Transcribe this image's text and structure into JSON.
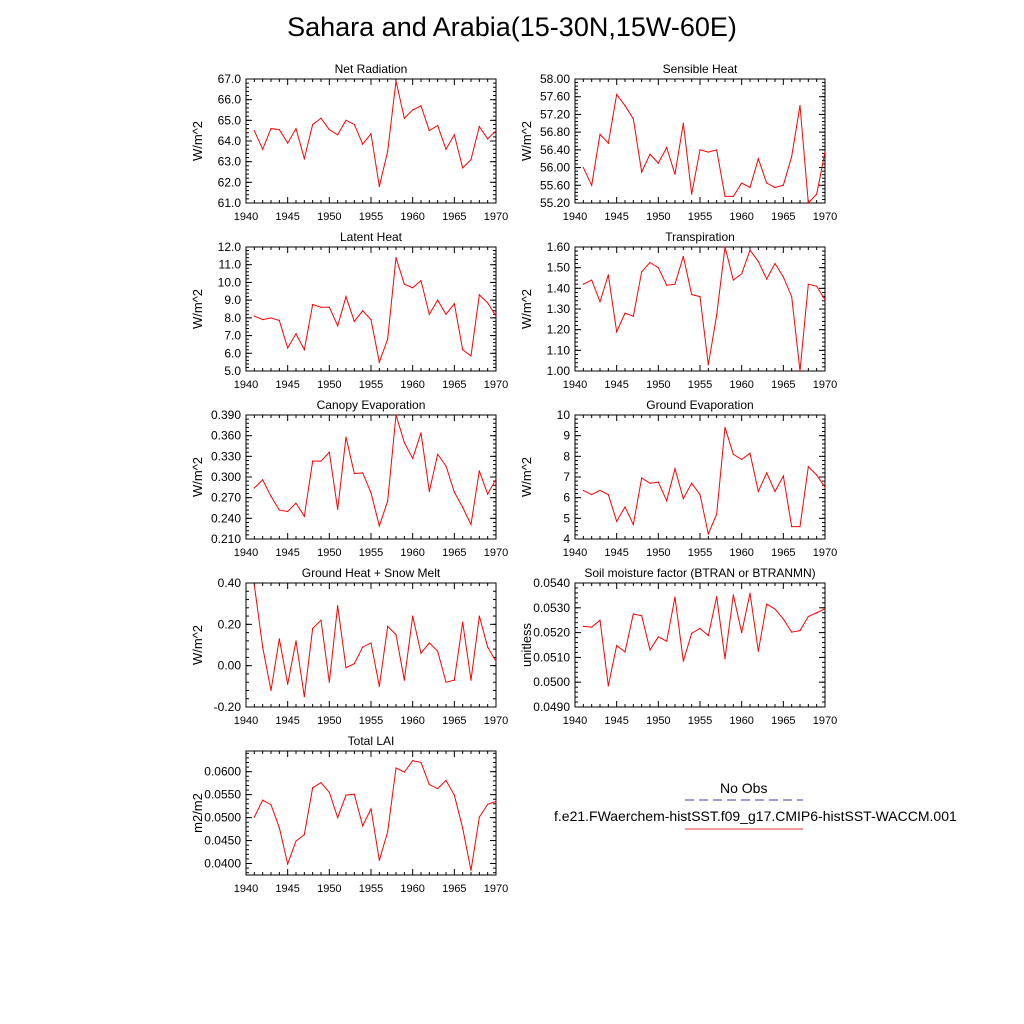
{
  "title": "Sahara and Arabia(15-30N,15W-60E)",
  "legend": {
    "obs_label": "No Obs",
    "obs_color": "#3f3f9f",
    "model_label": "f.e21.FWaerchem-histSST.f09_g17.CMIP6-histSST-WACCM.001",
    "model_color": "#e63a3a"
  },
  "line_color": "#ff0000",
  "chart_data": [
    {
      "type": "line",
      "title": "Net Radiation",
      "ylabel": "W/m^2",
      "xlim": [
        1940,
        1970
      ],
      "ylim": [
        61.0,
        67.0
      ],
      "xticks": [
        "1940",
        "1945",
        "1950",
        "1955",
        "1960",
        "1965",
        "1970"
      ],
      "yticks": [
        "61.0",
        "62.0",
        "63.0",
        "64.0",
        "65.0",
        "66.0",
        "67.0"
      ],
      "x": [
        1941,
        1942,
        1943,
        1944,
        1945,
        1946,
        1947,
        1948,
        1949,
        1950,
        1951,
        1952,
        1953,
        1954,
        1955,
        1956,
        1957,
        1958,
        1959,
        1960,
        1961,
        1962,
        1963,
        1964,
        1965,
        1966,
        1967,
        1968,
        1969,
        1970
      ],
      "y": [
        64.5,
        63.6,
        64.6,
        64.55,
        63.9,
        64.6,
        63.15,
        64.8,
        65.1,
        64.55,
        64.3,
        65.0,
        64.8,
        63.85,
        64.35,
        61.8,
        63.5,
        66.9,
        65.1,
        65.5,
        65.7,
        64.5,
        64.75,
        63.6,
        64.3,
        62.7,
        63.1,
        64.7,
        64.1,
        64.5
      ]
    },
    {
      "type": "line",
      "title": "Sensible Heat",
      "ylabel": "W/m^2",
      "xlim": [
        1940,
        1970
      ],
      "ylim": [
        55.2,
        58.0
      ],
      "xticks": [
        "1940",
        "1945",
        "1950",
        "1955",
        "1960",
        "1965",
        "1970"
      ],
      "yticks": [
        "55.20",
        "55.60",
        "56.00",
        "56.40",
        "56.80",
        "57.20",
        "57.60",
        "58.00"
      ],
      "x": [
        1941,
        1942,
        1943,
        1944,
        1945,
        1946,
        1947,
        1948,
        1949,
        1950,
        1951,
        1952,
        1953,
        1954,
        1955,
        1956,
        1957,
        1958,
        1959,
        1960,
        1961,
        1962,
        1963,
        1964,
        1965,
        1966,
        1967,
        1968,
        1969,
        1970
      ],
      "y": [
        56.0,
        55.6,
        56.75,
        56.55,
        57.65,
        57.4,
        57.1,
        55.9,
        56.3,
        56.1,
        56.45,
        55.85,
        57.0,
        55.4,
        56.4,
        56.35,
        56.4,
        55.35,
        55.35,
        55.65,
        55.55,
        56.2,
        55.65,
        55.55,
        55.6,
        56.25,
        57.4,
        55.2,
        55.4,
        56.35
      ]
    },
    {
      "type": "line",
      "title": "Latent Heat",
      "ylabel": "W/m^2",
      "xlim": [
        1940,
        1970
      ],
      "ylim": [
        5.0,
        12.0
      ],
      "xticks": [
        "1940",
        "1945",
        "1950",
        "1955",
        "1960",
        "1965",
        "1970"
      ],
      "yticks": [
        "5.0",
        "6.0",
        "7.0",
        "8.0",
        "9.0",
        "10.0",
        "11.0",
        "12.0"
      ],
      "x": [
        1941,
        1942,
        1943,
        1944,
        1945,
        1946,
        1947,
        1948,
        1949,
        1950,
        1951,
        1952,
        1953,
        1954,
        1955,
        1956,
        1957,
        1958,
        1959,
        1960,
        1961,
        1962,
        1963,
        1964,
        1965,
        1966,
        1967,
        1968,
        1969,
        1970
      ],
      "y": [
        8.1,
        7.9,
        8.0,
        7.85,
        6.3,
        7.1,
        6.2,
        8.75,
        8.6,
        8.6,
        7.55,
        9.2,
        7.8,
        8.4,
        7.9,
        5.5,
        6.8,
        11.4,
        9.9,
        9.7,
        10.1,
        8.2,
        9.0,
        8.2,
        8.8,
        6.2,
        5.85,
        9.3,
        8.85,
        8.1
      ]
    },
    {
      "type": "line",
      "title": "Transpiration",
      "ylabel": "W/m^2",
      "xlim": [
        1940,
        1970
      ],
      "ylim": [
        1.0,
        1.6
      ],
      "xticks": [
        "1940",
        "1945",
        "1950",
        "1955",
        "1960",
        "1965",
        "1970"
      ],
      "yticks": [
        "1.00",
        "1.10",
        "1.20",
        "1.30",
        "1.40",
        "1.50",
        "1.60"
      ],
      "x": [
        1941,
        1942,
        1943,
        1944,
        1945,
        1946,
        1947,
        1948,
        1949,
        1950,
        1951,
        1952,
        1953,
        1954,
        1955,
        1956,
        1957,
        1958,
        1959,
        1960,
        1961,
        1962,
        1963,
        1964,
        1965,
        1966,
        1967,
        1968,
        1969,
        1970
      ],
      "y": [
        1.42,
        1.44,
        1.335,
        1.465,
        1.19,
        1.28,
        1.265,
        1.48,
        1.525,
        1.5,
        1.415,
        1.42,
        1.555,
        1.37,
        1.36,
        1.03,
        1.27,
        1.6,
        1.44,
        1.47,
        1.585,
        1.53,
        1.445,
        1.52,
        1.455,
        1.36,
        1.0,
        1.42,
        1.41,
        1.345
      ]
    },
    {
      "type": "line",
      "title": "Canopy Evaporation",
      "ylabel": "W/m^2",
      "xlim": [
        1940,
        1970
      ],
      "ylim": [
        0.21,
        0.39
      ],
      "xticks": [
        "1940",
        "1945",
        "1950",
        "1955",
        "1960",
        "1965",
        "1970"
      ],
      "yticks": [
        "0.210",
        "0.240",
        "0.270",
        "0.300",
        "0.330",
        "0.360",
        "0.390"
      ],
      "x": [
        1941,
        1942,
        1943,
        1944,
        1945,
        1946,
        1947,
        1948,
        1949,
        1950,
        1951,
        1952,
        1953,
        1954,
        1955,
        1956,
        1957,
        1958,
        1959,
        1960,
        1961,
        1962,
        1963,
        1964,
        1965,
        1966,
        1967,
        1968,
        1969,
        1970
      ],
      "y": [
        0.284,
        0.296,
        0.272,
        0.252,
        0.25,
        0.262,
        0.243,
        0.323,
        0.323,
        0.336,
        0.253,
        0.358,
        0.305,
        0.306,
        0.277,
        0.229,
        0.265,
        0.39,
        0.35,
        0.327,
        0.364,
        0.279,
        0.333,
        0.316,
        0.278,
        0.256,
        0.231,
        0.309,
        0.275,
        0.297
      ]
    },
    {
      "type": "line",
      "title": "Ground Evaporation",
      "ylabel": "W/m^2",
      "xlim": [
        1940,
        1970
      ],
      "ylim": [
        4,
        10
      ],
      "xticks": [
        "1940",
        "1945",
        "1950",
        "1955",
        "1960",
        "1965",
        "1970"
      ],
      "yticks": [
        "4",
        "5",
        "6",
        "7",
        "8",
        "9",
        "10"
      ],
      "x": [
        1941,
        1942,
        1943,
        1944,
        1945,
        1946,
        1947,
        1948,
        1949,
        1950,
        1951,
        1952,
        1953,
        1954,
        1955,
        1956,
        1957,
        1958,
        1959,
        1960,
        1961,
        1962,
        1963,
        1964,
        1965,
        1966,
        1967,
        1968,
        1969,
        1970
      ],
      "y": [
        6.35,
        6.15,
        6.35,
        6.15,
        4.85,
        5.55,
        4.7,
        6.95,
        6.7,
        6.75,
        5.85,
        7.4,
        5.95,
        6.7,
        6.15,
        4.25,
        5.2,
        9.4,
        8.1,
        7.85,
        8.15,
        6.3,
        7.2,
        6.3,
        7.05,
        4.6,
        4.6,
        7.5,
        7.1,
        6.5
      ]
    },
    {
      "type": "line",
      "title": "Ground Heat + Snow Melt",
      "ylabel": "W/m^2",
      "xlim": [
        1940,
        1970
      ],
      "ylim": [
        -0.2,
        0.4
      ],
      "xticks": [
        "1940",
        "1945",
        "1950",
        "1955",
        "1960",
        "1965",
        "1970"
      ],
      "yticks": [
        "-0.20",
        "0.00",
        "0.20",
        "0.40"
      ],
      "x": [
        1941,
        1942,
        1943,
        1944,
        1945,
        1946,
        1947,
        1948,
        1949,
        1950,
        1951,
        1952,
        1953,
        1954,
        1955,
        1956,
        1957,
        1958,
        1959,
        1960,
        1961,
        1962,
        1963,
        1964,
        1965,
        1966,
        1967,
        1968,
        1969,
        1970
      ],
      "y": [
        0.39,
        0.09,
        -0.12,
        0.13,
        -0.09,
        0.12,
        -0.15,
        0.18,
        0.22,
        -0.08,
        0.29,
        -0.01,
        0.01,
        0.09,
        0.11,
        -0.1,
        0.19,
        0.15,
        -0.07,
        0.24,
        0.06,
        0.11,
        0.07,
        -0.08,
        -0.07,
        0.21,
        -0.07,
        0.24,
        0.09,
        0.02
      ]
    },
    {
      "type": "line",
      "title": "Soil moisture factor (BTRAN or BTRANMN)",
      "ylabel": "unitless",
      "xlim": [
        1940,
        1970
      ],
      "ylim": [
        0.049,
        0.054
      ],
      "xticks": [
        "1940",
        "1945",
        "1950",
        "1955",
        "1960",
        "1965",
        "1970"
      ],
      "yticks": [
        "0.0490",
        "0.0500",
        "0.0510",
        "0.0520",
        "0.0530",
        "0.0540"
      ],
      "x": [
        1941,
        1942,
        1943,
        1944,
        1945,
        1946,
        1947,
        1948,
        1949,
        1950,
        1951,
        1952,
        1953,
        1954,
        1955,
        1956,
        1957,
        1958,
        1959,
        1960,
        1961,
        1962,
        1963,
        1964,
        1965,
        1966,
        1967,
        1968,
        1969,
        1970
      ],
      "y": [
        0.05225,
        0.05222,
        0.0525,
        0.04985,
        0.05148,
        0.05122,
        0.05275,
        0.05268,
        0.0513,
        0.05183,
        0.05165,
        0.05343,
        0.05085,
        0.05197,
        0.05217,
        0.05188,
        0.05345,
        0.05095,
        0.05352,
        0.052,
        0.05359,
        0.05125,
        0.05315,
        0.05295,
        0.05255,
        0.05202,
        0.05208,
        0.05265,
        0.0528,
        0.05296
      ]
    },
    {
      "type": "line",
      "title": "Total LAI",
      "ylabel": "m2/m2",
      "xlim": [
        1940,
        1970
      ],
      "ylim": [
        0.0375,
        0.0645
      ],
      "xticks": [
        "1940",
        "1945",
        "1950",
        "1955",
        "1960",
        "1965",
        "1970"
      ],
      "yticks": [
        "0.0400",
        "0.0450",
        "0.0500",
        "0.0550",
        "0.0600"
      ],
      "x": [
        1941,
        1942,
        1943,
        1944,
        1945,
        1946,
        1947,
        1948,
        1949,
        1950,
        1951,
        1952,
        1953,
        1954,
        1955,
        1956,
        1957,
        1958,
        1959,
        1960,
        1961,
        1962,
        1963,
        1964,
        1965,
        1966,
        1967,
        1968,
        1969,
        1970
      ],
      "y": [
        0.0501,
        0.0538,
        0.0528,
        0.0478,
        0.0399,
        0.0449,
        0.0463,
        0.0565,
        0.0576,
        0.0555,
        0.05,
        0.0549,
        0.0551,
        0.0482,
        0.0519,
        0.0407,
        0.0469,
        0.0608,
        0.0599,
        0.0624,
        0.062,
        0.0572,
        0.0563,
        0.0581,
        0.0549,
        0.0477,
        0.0385,
        0.0501,
        0.0529,
        0.0535
      ]
    }
  ]
}
